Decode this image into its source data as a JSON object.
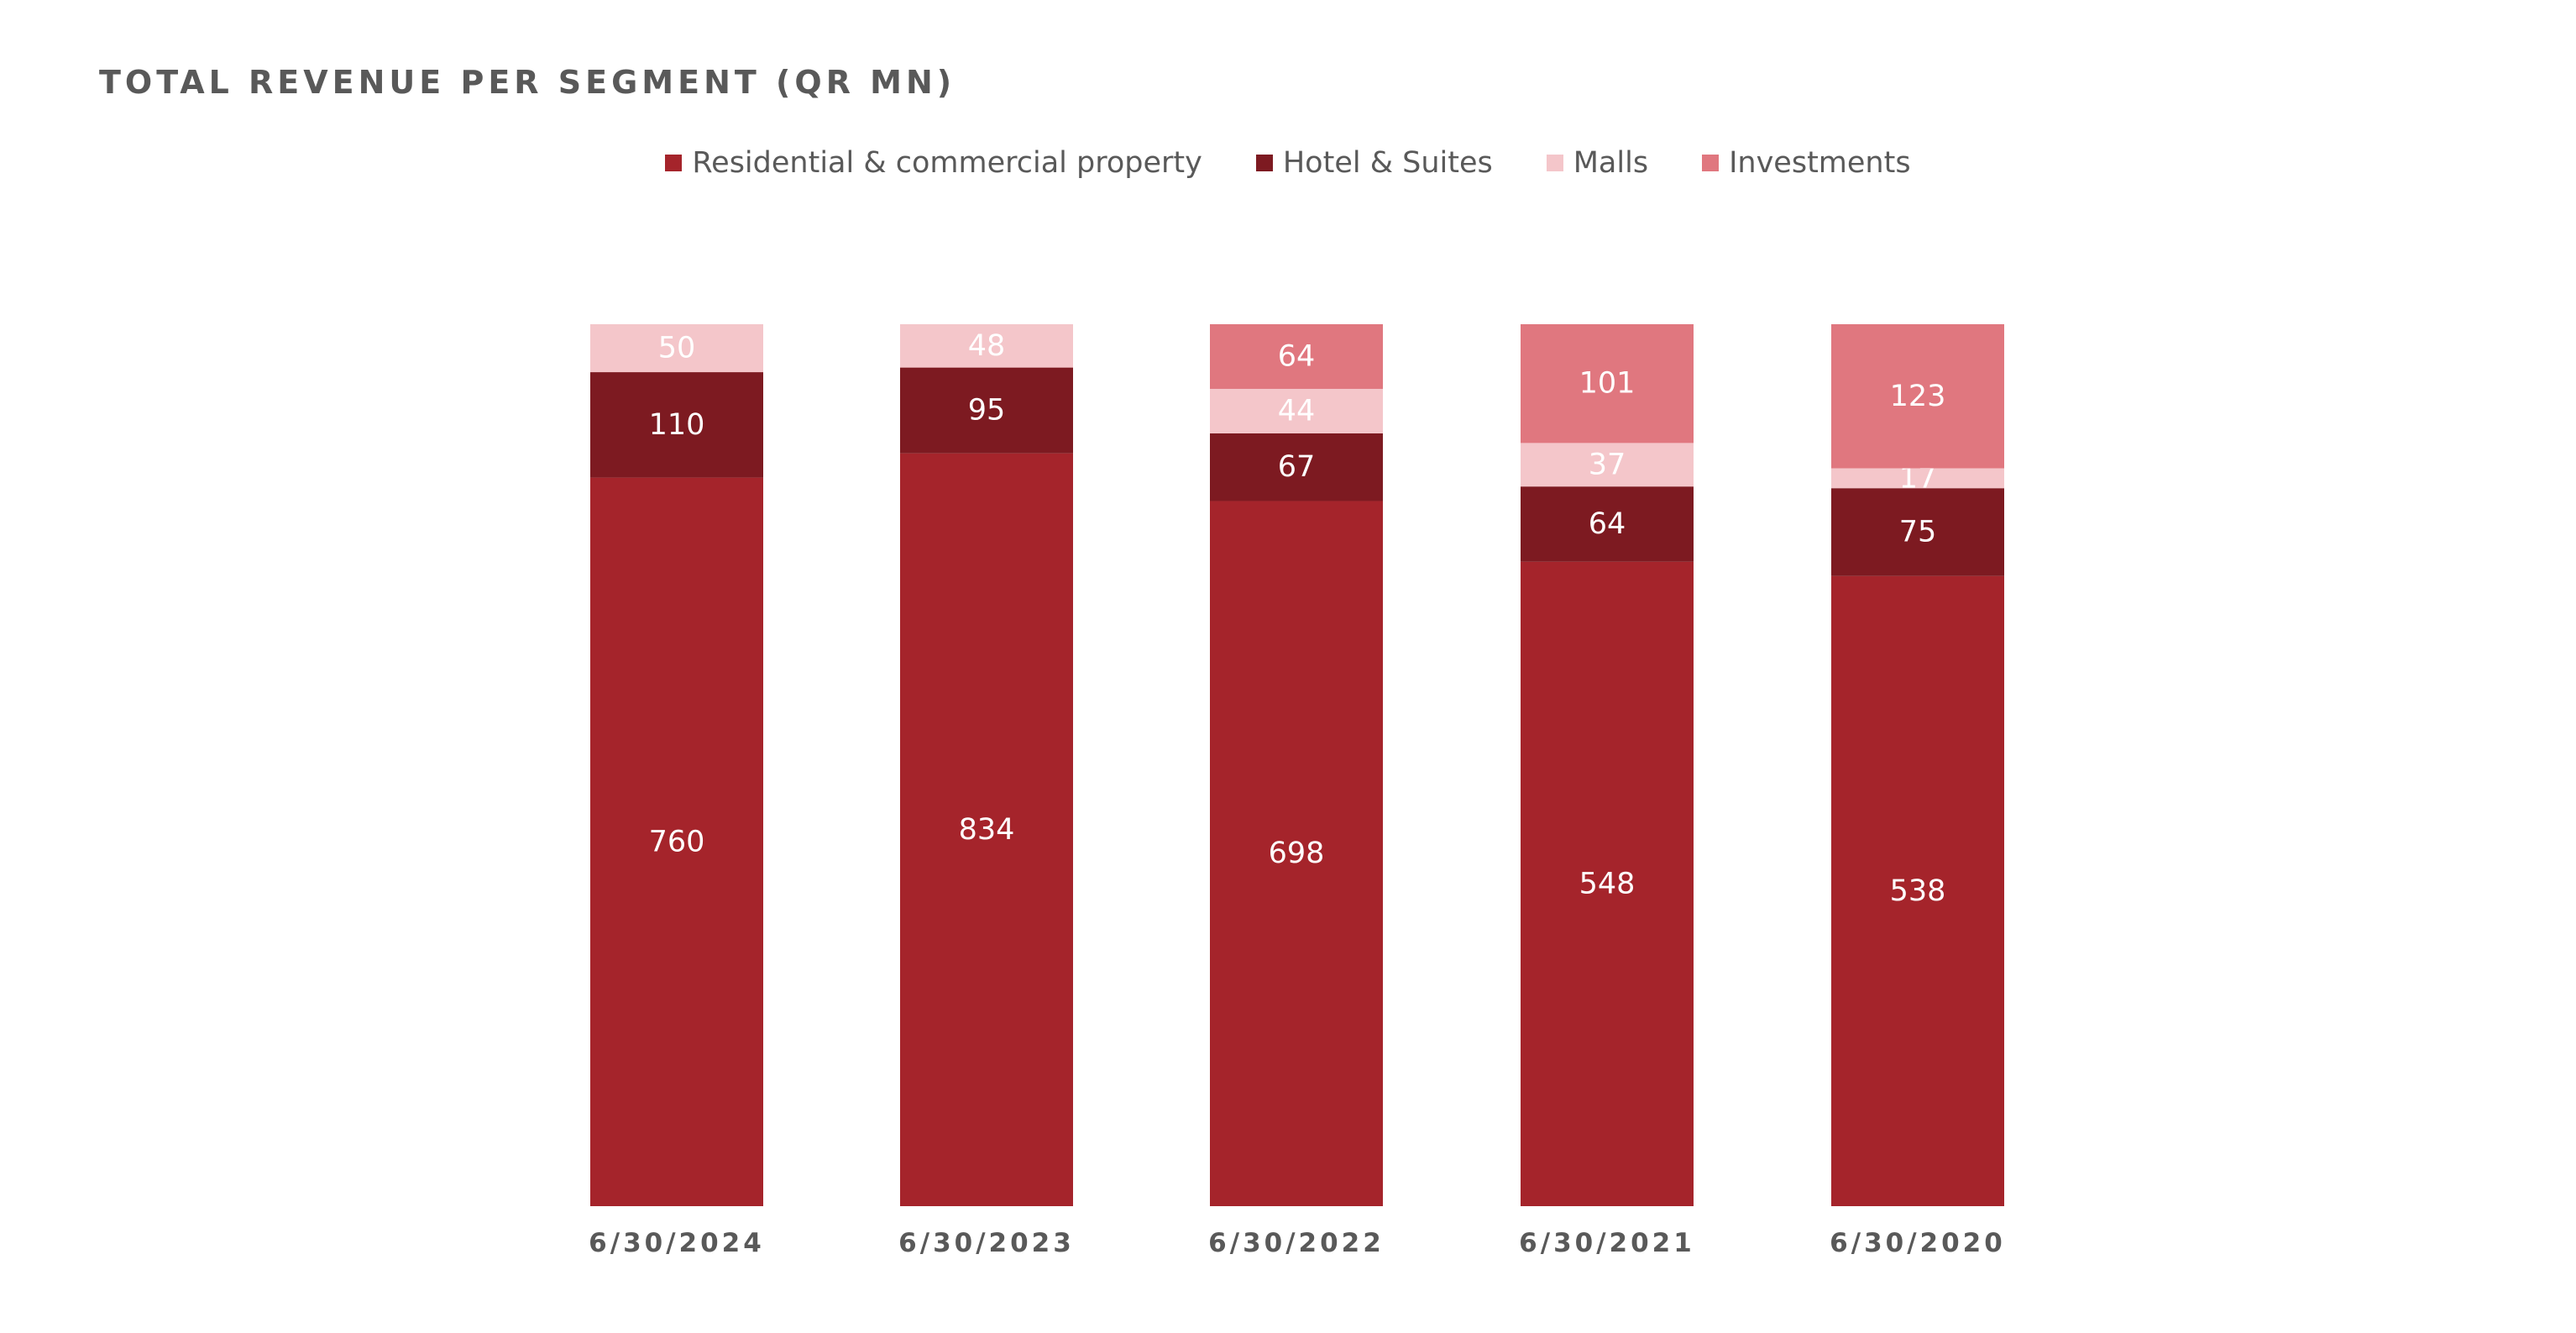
{
  "chart_data": {
    "type": "bar",
    "stacked": true,
    "normalized_to_100_percent": true,
    "title": "TOTAL REVENUE PER SEGMENT (QR MN)",
    "categories": [
      "6/30/2024",
      "6/30/2023",
      "6/30/2022",
      "6/30/2021",
      "6/30/2020"
    ],
    "series": [
      {
        "name": "Residential & commercial property",
        "color": "#A5242B",
        "label_color": "#FFFFFF",
        "values": [
          760,
          834,
          698,
          548,
          538
        ],
        "labels": [
          "760",
          "834",
          "698",
          "548",
          "538"
        ]
      },
      {
        "name": "Hotel & Suites",
        "color": "#7D1A21",
        "label_color": "#FFFFFF",
        "values": [
          110,
          95,
          67,
          64,
          75
        ],
        "labels": [
          "110",
          "95",
          "67",
          "64",
          "75"
        ]
      },
      {
        "name": "Malls",
        "color": "#F4C6CA",
        "label_color": "#FFFFFF",
        "values": [
          50,
          48,
          44,
          37,
          17
        ],
        "labels": [
          "50",
          "48",
          "44",
          "37",
          "17"
        ]
      },
      {
        "name": "Investments",
        "color": "#E0777F",
        "label_color": "#FFFFFF",
        "values": [
          0,
          0,
          64,
          101,
          123
        ],
        "labels": [
          "",
          "",
          "64",
          "101",
          "123"
        ]
      }
    ],
    "xlabel": "",
    "ylabel": "",
    "grid": false,
    "legend_position": "top-center"
  }
}
